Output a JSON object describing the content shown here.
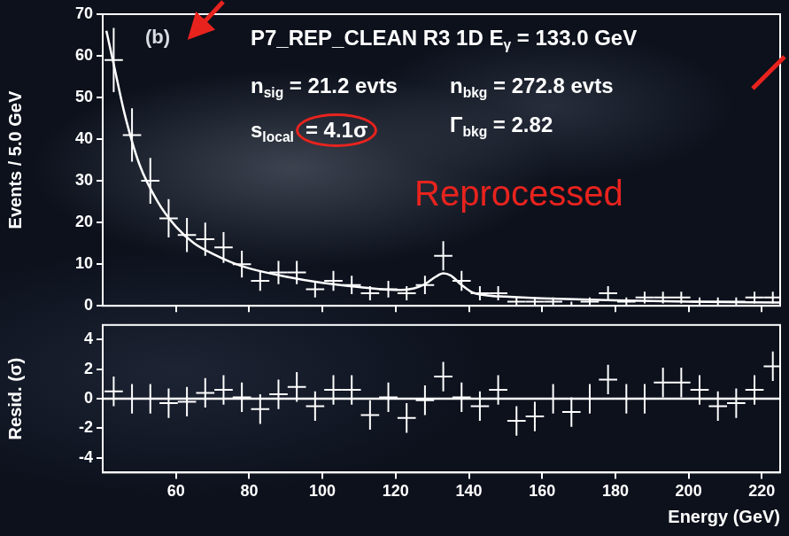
{
  "chart_data": [
    {
      "type": "scatter",
      "y_label": "Events / 5.0 GeV",
      "panel_label": "(b)",
      "xlim": [
        40,
        225
      ],
      "xticks": [
        60,
        80,
        100,
        120,
        140,
        160,
        180,
        200,
        220
      ],
      "ylim": [
        0,
        70
      ],
      "yticks": [
        0,
        10,
        20,
        30,
        40,
        50,
        60,
        70
      ],
      "grid": false,
      "tick_labels": "y",
      "annotations": [
        {
          "parts": [
            {
              "text": "P7_REP_CLEAN R3 1D E"
            },
            {
              "sub": "γ"
            },
            {
              "text": " = 133.0 GeV"
            }
          ]
        },
        {
          "parts": [
            {
              "text": "n"
            },
            {
              "sub": "sig"
            },
            {
              "text": " = 21.2 evts"
            }
          ]
        },
        {
          "parts": [
            {
              "text": "n"
            },
            {
              "sub": "bkg"
            },
            {
              "text": " = 272.8 evts"
            }
          ]
        },
        {
          "parts": [
            {
              "text": "s"
            },
            {
              "sub": "local"
            },
            {
              "text": "= 4.1σ"
            }
          ]
        },
        {
          "parts": [
            {
              "text": "Γ"
            },
            {
              "sub": "bkg"
            },
            {
              "text": " = 2.82"
            }
          ]
        },
        {
          "parts": [
            {
              "text": "Reprocessed"
            }
          ],
          "color": "#e8231e"
        }
      ],
      "series": [
        {
          "type": "scatter",
          "marker": "cross",
          "color": "#ffffff",
          "x": [
            43,
            48,
            53,
            58,
            63,
            68,
            73,
            78,
            83,
            88,
            93,
            98,
            103,
            108,
            113,
            118,
            123,
            128,
            133,
            138,
            143,
            148,
            153,
            158,
            163,
            168,
            173,
            178,
            183,
            188,
            193,
            198,
            203,
            208,
            213,
            218,
            223
          ],
          "values": [
            59,
            41,
            30,
            21,
            17,
            16,
            14,
            10,
            6,
            8,
            8,
            4,
            6,
            5,
            3,
            4,
            3,
            5,
            12,
            6,
            3,
            3,
            1,
            1,
            1,
            0,
            1,
            3,
            1,
            2,
            2,
            2,
            1,
            1,
            1,
            2,
            2
          ],
          "y_errors": [
            7.7,
            6.4,
            5.5,
            4.6,
            4.1,
            4,
            3.7,
            3.2,
            2.4,
            2.8,
            2.8,
            2,
            2.4,
            2.2,
            1.7,
            2,
            1.7,
            2.2,
            3.5,
            2.4,
            1.7,
            1.7,
            1,
            1,
            1,
            1,
            1,
            1.7,
            1,
            1.4,
            1.4,
            1.4,
            1,
            1,
            1,
            1.4,
            1.4
          ],
          "x_error": 2.5
        },
        {
          "type": "line",
          "line_style": "solid",
          "color": "#ffffff",
          "x": [
            41,
            43,
            46,
            50,
            55,
            60,
            65,
            70,
            75,
            80,
            90,
            100,
            110,
            120,
            125,
            128,
            131,
            133,
            135,
            138,
            141,
            145,
            150,
            160,
            180,
            200,
            225
          ],
          "values": [
            66,
            58,
            46,
            34,
            25,
            19,
            15,
            12.5,
            10.5,
            9,
            7,
            5.5,
            4.5,
            3.8,
            4.2,
            5.2,
            7,
            7.8,
            7.3,
            5,
            3.2,
            2.5,
            2.2,
            1.8,
            1.3,
            1.0,
            0.8
          ]
        }
      ]
    },
    {
      "type": "scatter",
      "y_label": "Resid. (σ)",
      "x_label": "Energy (GeV)",
      "xlim": [
        40,
        225
      ],
      "xticks": [
        60,
        80,
        100,
        120,
        140,
        160,
        180,
        200,
        220
      ],
      "ylim": [
        -5,
        5
      ],
      "yticks": [
        -4,
        -2,
        0,
        2,
        4
      ],
      "grid": false,
      "series": [
        {
          "type": "line",
          "line_style": "solid",
          "color": "#ffffff",
          "x": [
            40,
            225
          ],
          "values": [
            0,
            0
          ]
        },
        {
          "type": "scatter",
          "marker": "cross",
          "color": "#ffffff",
          "x": [
            43,
            48,
            53,
            58,
            63,
            68,
            73,
            78,
            83,
            88,
            93,
            98,
            103,
            108,
            113,
            118,
            123,
            128,
            133,
            138,
            143,
            148,
            153,
            158,
            163,
            168,
            173,
            178,
            183,
            188,
            193,
            198,
            203,
            208,
            213,
            218,
            223
          ],
          "values": [
            0.5,
            0,
            0,
            -0.3,
            -0.2,
            0.4,
            0.6,
            0.1,
            -0.7,
            0.3,
            0.8,
            -0.5,
            0.6,
            0.6,
            -1.1,
            0.1,
            -1.3,
            -0.1,
            1.5,
            0.1,
            -0.5,
            0.6,
            -1.5,
            -1.2,
            0,
            -0.9,
            0,
            1.3,
            0,
            0,
            1.1,
            1.1,
            0.6,
            -0.5,
            -0.3,
            0.6,
            2.2
          ],
          "y_errors": [
            1,
            1,
            1,
            1,
            1,
            1,
            1,
            1,
            1,
            1,
            1,
            1,
            1,
            1,
            1,
            1,
            1,
            1,
            1,
            1,
            1,
            1,
            1,
            1,
            1,
            1,
            1,
            1,
            1,
            1,
            1,
            1,
            1,
            1,
            1,
            1,
            1
          ],
          "x_error": 2.5
        }
      ]
    }
  ]
}
